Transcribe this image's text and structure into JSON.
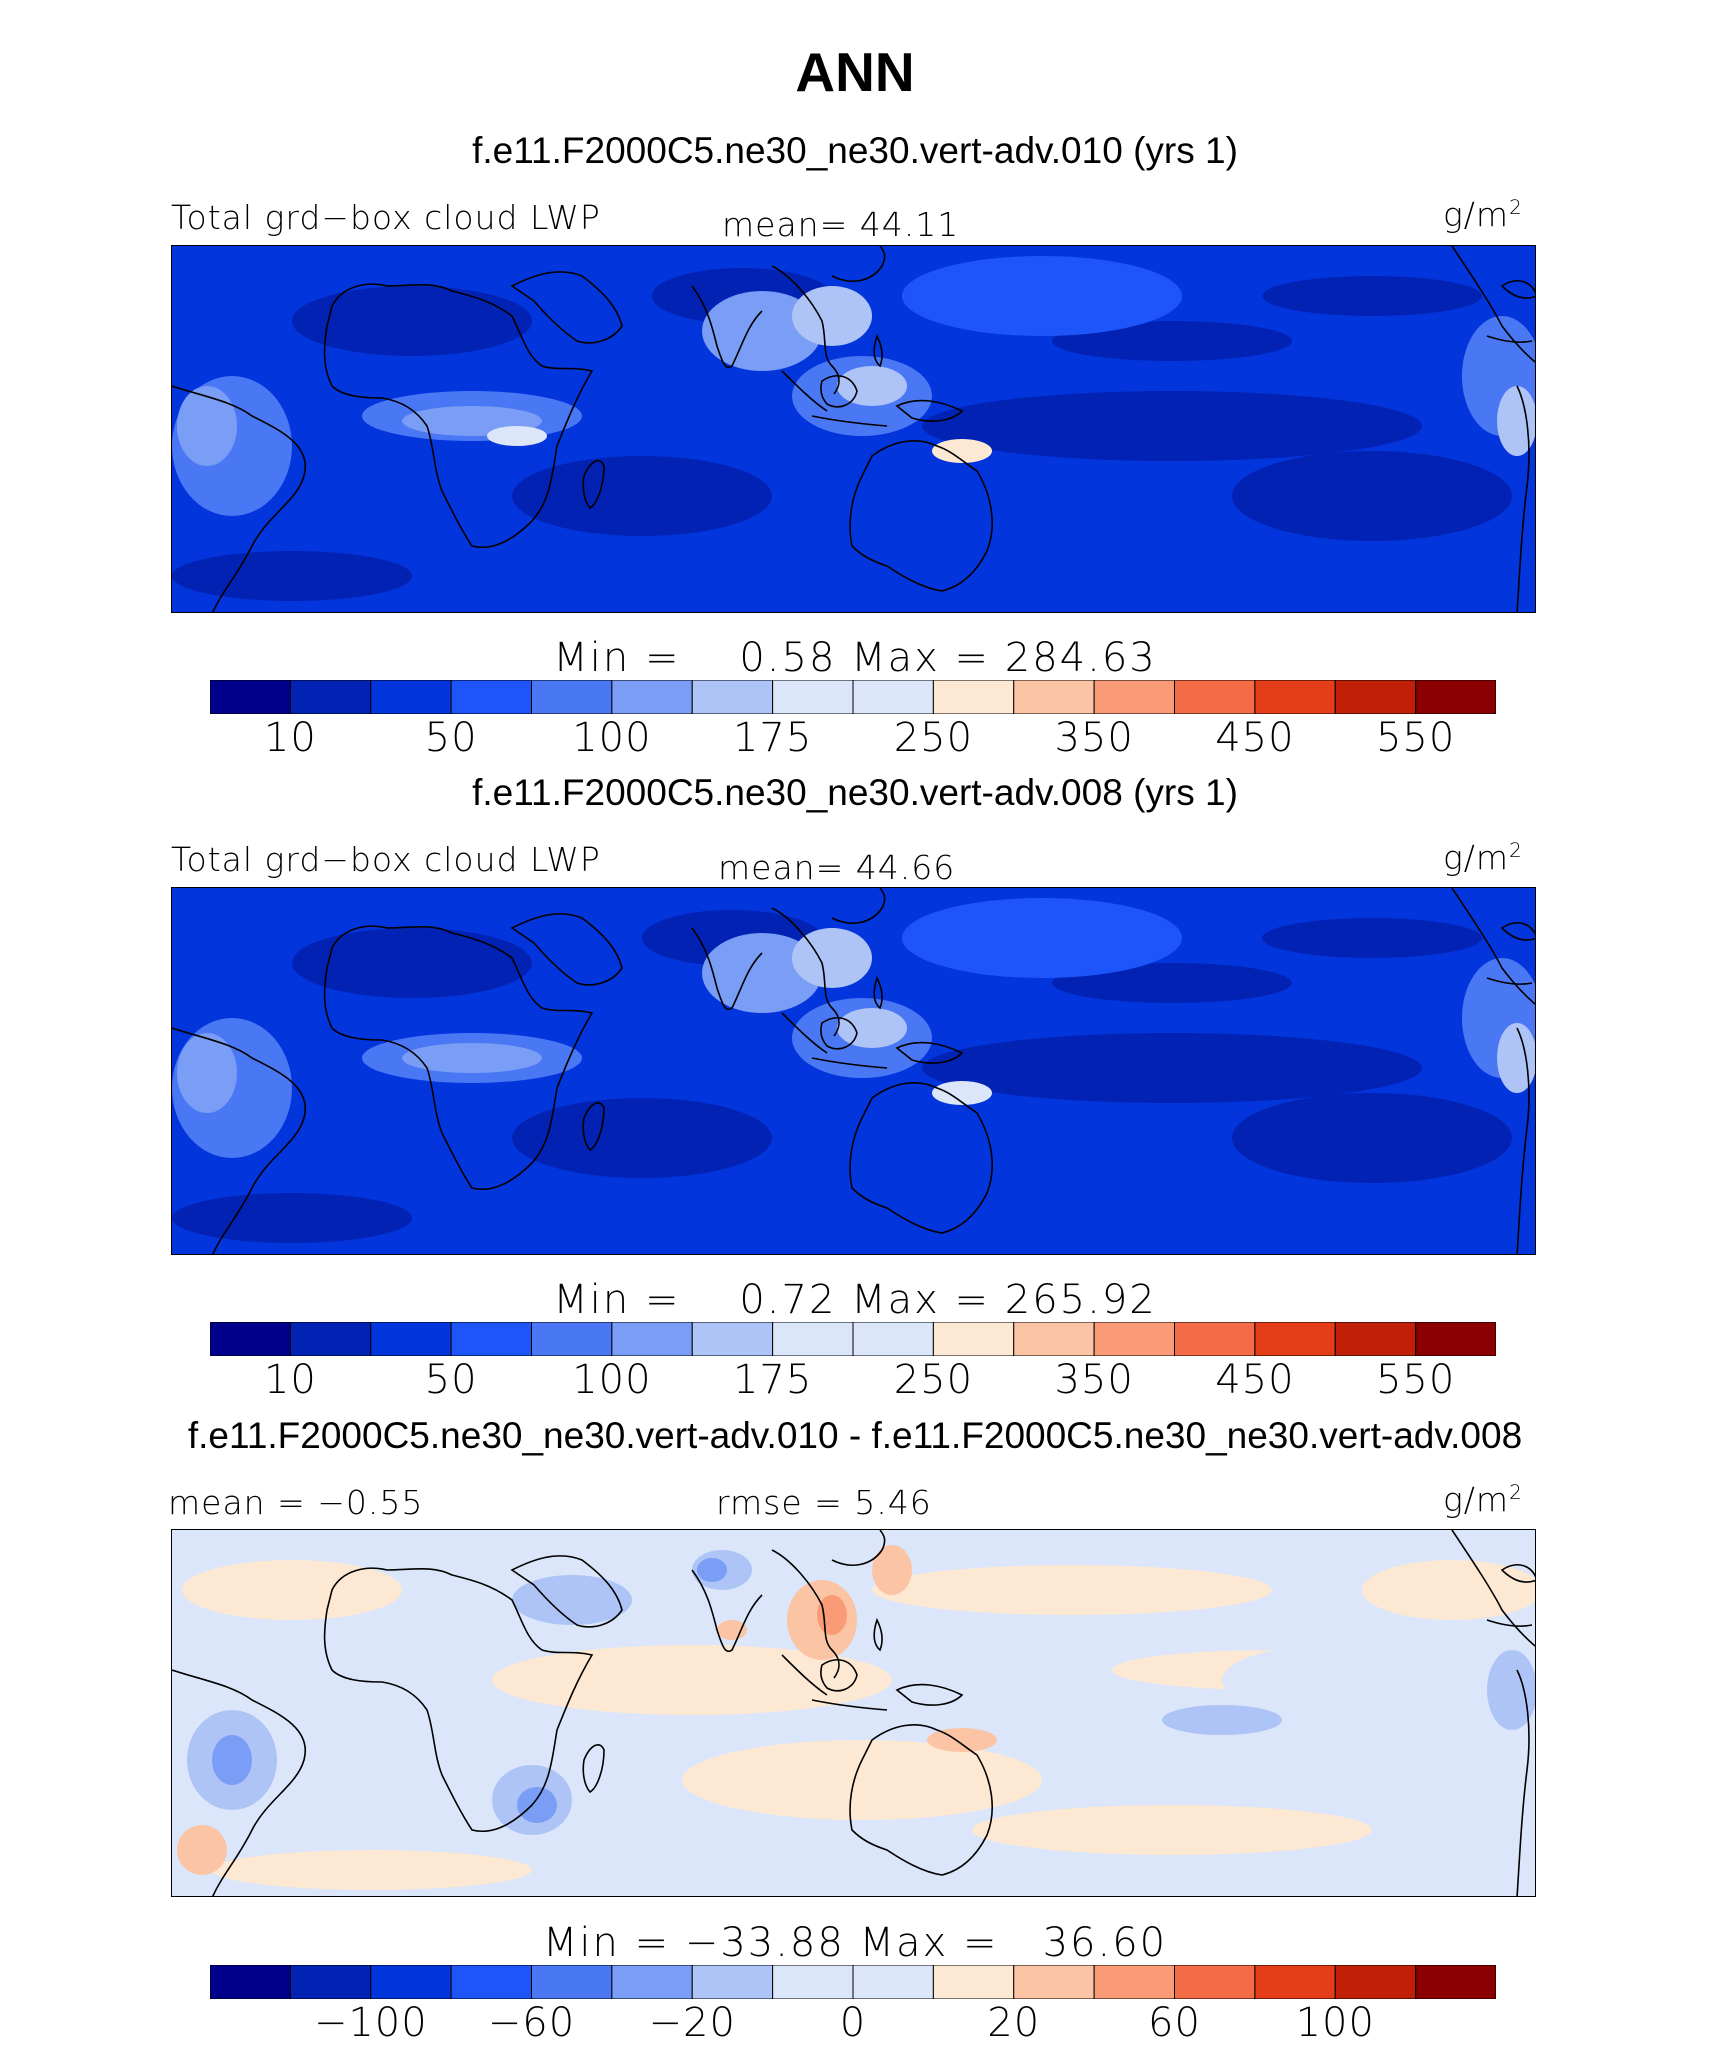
{
  "figure": {
    "title": "ANN"
  },
  "colors": {
    "palette": [
      "#00008b",
      "#0222b4",
      "#0335dc",
      "#1e55f8",
      "#4a78f5",
      "#7a9df5",
      "#aec4f7",
      "#dbe6fa",
      "#fde8d3",
      "#fbc5a5",
      "#f99b76",
      "#f46c45",
      "#e43d17",
      "#c21f08",
      "#8b0000"
    ],
    "land_outline": "#000000"
  },
  "panels": [
    {
      "case": "f.e11.F2000C5.ne30_ne30.vert-adv.010 (yrs 1)",
      "left_label": "Total grd−box cloud LWP",
      "center_label": "mean=  44.11",
      "units": "g/m",
      "units_exp": "2",
      "minmax": "Min =    0.58 Max = 284.63",
      "colorbar_ticks": [
        "10",
        "50",
        "100",
        "175",
        "250",
        "350",
        "450",
        "550"
      ],
      "field": "LWP"
    },
    {
      "case": "f.e11.F2000C5.ne30_ne30.vert-adv.008 (yrs 1)",
      "left_label": "Total grd−box cloud LWP",
      "center_label": "mean=  44.66",
      "units": "g/m",
      "units_exp": "2",
      "minmax": "Min =    0.72 Max = 265.92",
      "colorbar_ticks": [
        "10",
        "50",
        "100",
        "175",
        "250",
        "350",
        "450",
        "550"
      ],
      "field": "LWP"
    },
    {
      "case": "f.e11.F2000C5.ne30_ne30.vert-adv.010 - f.e11.F2000C5.ne30_ne30.vert-adv.008",
      "left_label": "mean =  −0.55",
      "center_label": "rmse =     5.46",
      "units": "g/m",
      "units_exp": "2",
      "minmax": "Min = −33.88 Max =   36.60",
      "colorbar_ticks": [
        "−100",
        "−60",
        "−20",
        "0",
        "20",
        "60",
        "100"
      ],
      "field": "diff"
    }
  ]
}
